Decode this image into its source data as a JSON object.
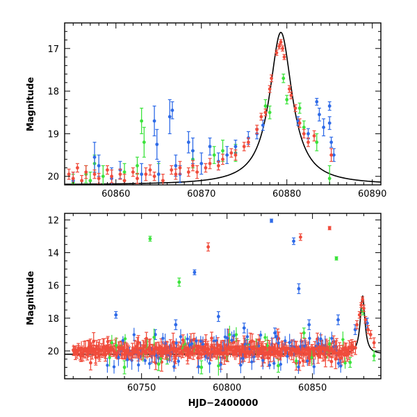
{
  "colors": {
    "red": "#f04c3c",
    "green": "#3ce33c",
    "blue": "#2f6be8"
  },
  "chart_data": [
    {
      "type": "scatter",
      "panel": "top",
      "title": "",
      "xlabel": "",
      "ylabel": "Magnitude",
      "xlim": [
        60854,
        60891
      ],
      "ylim": [
        20.2,
        16.4
      ],
      "y_inverted": true,
      "xticks": [
        60860,
        60870,
        60880,
        60890
      ],
      "yticks": [
        17,
        18,
        19,
        20
      ],
      "model_curve": {
        "peak_x": 60879.3,
        "peak_y": 16.62,
        "base_y": 20.2
      },
      "series": [
        {
          "color": "red",
          "points": [
            [
              60854.5,
              19.95,
              0.12
            ],
            [
              60855,
              20.05,
              0.15
            ],
            [
              60855.5,
              19.8,
              0.1
            ],
            [
              60856,
              20.1,
              0.12
            ],
            [
              60856.5,
              19.9,
              0.15
            ],
            [
              60857.5,
              19.95,
              0.1
            ],
            [
              60858,
              20.05,
              0.12
            ],
            [
              60859,
              19.85,
              0.1
            ],
            [
              60859.5,
              20.0,
              0.15
            ],
            [
              60860.5,
              19.95,
              0.12
            ],
            [
              60861,
              20.1,
              0.15
            ],
            [
              60862,
              19.9,
              0.1
            ],
            [
              60862.5,
              20.05,
              0.12
            ],
            [
              60863.5,
              19.95,
              0.15
            ],
            [
              60864,
              19.85,
              0.12
            ],
            [
              60864.5,
              20.0,
              0.1
            ],
            [
              60865.5,
              20.1,
              0.15
            ],
            [
              60866.5,
              19.85,
              0.1
            ],
            [
              60867,
              19.95,
              0.12
            ],
            [
              60867.5,
              19.8,
              0.15
            ],
            [
              60868.5,
              19.9,
              0.1
            ],
            [
              60869,
              19.75,
              0.12
            ],
            [
              60869.5,
              19.9,
              0.15
            ],
            [
              60870.5,
              19.8,
              0.1
            ],
            [
              60871,
              19.7,
              0.12
            ],
            [
              60872,
              19.75,
              0.1
            ],
            [
              60872.5,
              19.6,
              0.12
            ],
            [
              60873.5,
              19.45,
              0.1
            ],
            [
              60874,
              19.5,
              0.12
            ],
            [
              60875,
              19.3,
              0.1
            ],
            [
              60875.5,
              19.2,
              0.1
            ],
            [
              60876.5,
              18.9,
              0.1
            ],
            [
              60877,
              18.6,
              0.08
            ],
            [
              60877.5,
              18.5,
              0.08
            ],
            [
              60878,
              17.95,
              0.08
            ],
            [
              60878.2,
              17.7,
              0.08
            ],
            [
              60878.8,
              17.1,
              0.06
            ],
            [
              60879.1,
              16.95,
              0.06
            ],
            [
              60879.3,
              16.85,
              0.06
            ],
            [
              60879.5,
              17.0,
              0.06
            ],
            [
              60879.7,
              17.2,
              0.06
            ],
            [
              60880.3,
              17.95,
              0.08
            ],
            [
              60880.5,
              18.1,
              0.08
            ],
            [
              60881,
              18.4,
              0.08
            ],
            [
              60881.5,
              18.75,
              0.1
            ],
            [
              60882,
              19.0,
              0.1
            ],
            [
              60882.5,
              19.2,
              0.1
            ],
            [
              60883.2,
              19.05,
              0.12
            ],
            [
              60885.2,
              19.5,
              0.15
            ]
          ]
        },
        {
          "color": "green",
          "points": [
            [
              60855,
              20.15,
              0.2
            ],
            [
              60856.5,
              19.95,
              0.2
            ],
            [
              60857,
              20.1,
              0.2
            ],
            [
              60857.5,
              19.7,
              0.2
            ],
            [
              60858.5,
              20.0,
              0.25
            ],
            [
              60861,
              19.9,
              0.2
            ],
            [
              60862.5,
              19.75,
              0.2
            ],
            [
              60863.3,
              19.2,
              0.35
            ],
            [
              60863,
              18.7,
              0.3
            ],
            [
              60865,
              19.95,
              0.25
            ],
            [
              60869,
              19.6,
              0.2
            ],
            [
              60871.5,
              19.5,
              0.2
            ],
            [
              60872.5,
              19.4,
              0.25
            ],
            [
              60874,
              19.45,
              0.2
            ],
            [
              60877.5,
              18.35,
              0.15
            ],
            [
              60878,
              18.5,
              0.15
            ],
            [
              60879.6,
              17.7,
              0.1
            ],
            [
              60880,
              18.2,
              0.1
            ],
            [
              60881.5,
              18.4,
              0.12
            ],
            [
              60882,
              18.85,
              0.15
            ],
            [
              60883.5,
              19.2,
              0.2
            ],
            [
              60885,
              20.05,
              0.3
            ]
          ]
        },
        {
          "color": "blue",
          "points": [
            [
              60855,
              20.1,
              0.2
            ],
            [
              60857.5,
              19.55,
              0.35
            ],
            [
              60858,
              19.75,
              0.25
            ],
            [
              60859.5,
              20.05,
              0.25
            ],
            [
              60860.5,
              19.85,
              0.2
            ],
            [
              60863,
              19.95,
              0.25
            ],
            [
              60864.5,
              18.7,
              0.35
            ],
            [
              60864.8,
              19.25,
              0.35
            ],
            [
              60865,
              19.95,
              0.3
            ],
            [
              60866.3,
              18.6,
              0.4
            ],
            [
              60866.6,
              18.45,
              0.2
            ],
            [
              60867,
              19.75,
              0.25
            ],
            [
              60867.5,
              19.95,
              0.2
            ],
            [
              60868.5,
              19.2,
              0.25
            ],
            [
              60869,
              19.4,
              0.3
            ],
            [
              60870,
              19.7,
              0.25
            ],
            [
              60871,
              19.3,
              0.2
            ],
            [
              60872,
              19.65,
              0.2
            ],
            [
              60873,
              19.5,
              0.2
            ],
            [
              60874,
              19.3,
              0.15
            ],
            [
              60875.5,
              19.1,
              0.15
            ],
            [
              60876.5,
              19.0,
              0.12
            ],
            [
              60877.2,
              18.8,
              0.12
            ],
            [
              60881.3,
              18.7,
              0.1
            ],
            [
              60882.5,
              19.0,
              0.12
            ],
            [
              60883.5,
              18.25,
              0.08
            ],
            [
              60883.8,
              18.55,
              0.15
            ],
            [
              60884.3,
              18.85,
              0.2
            ],
            [
              60885,
              18.35,
              0.1
            ],
            [
              60885,
              18.75,
              0.15
            ],
            [
              60885.2,
              19.2,
              0.12
            ],
            [
              60885.5,
              19.5,
              0.15
            ]
          ]
        }
      ]
    },
    {
      "type": "scatter",
      "panel": "bottom",
      "title": "",
      "xlabel": "HJD−2400000",
      "ylabel": "Magnitude",
      "xlim": [
        60705,
        60890
      ],
      "ylim": [
        21.7,
        11.6
      ],
      "y_inverted": true,
      "xticks": [
        60750,
        60800,
        60850
      ],
      "yticks": [
        12,
        14,
        16,
        18,
        20
      ],
      "model_curve": {
        "peak_x": 60879.3,
        "peak_y": 16.62,
        "base_y": 20.2
      },
      "series": [
        {
          "color": "red",
          "band": {
            "x_start": 60710,
            "x_end": 60875,
            "y_center": 20.0
          },
          "points": [
            [
              60860,
              12.5,
              0.1
            ],
            [
              60843,
              13.05,
              0.2
            ],
            [
              60789,
              13.65,
              0.25
            ],
            [
              60876,
              18.4,
              0.25
            ],
            [
              60877.5,
              17.8,
              0.2
            ],
            [
              60878.5,
              17.2,
              0.15
            ],
            [
              60879.3,
              16.85,
              0.15
            ],
            [
              60880,
              17.4,
              0.2
            ],
            [
              60881,
              18.1,
              0.2
            ],
            [
              60882.5,
              18.7,
              0.25
            ],
            [
              60884,
              19.0,
              0.25
            ],
            [
              60886,
              19.5,
              0.3
            ]
          ]
        },
        {
          "color": "green",
          "points": [
            [
              60755,
              13.15,
              0.15
            ],
            [
              60772,
              15.8,
              0.25
            ],
            [
              60864,
              14.35,
              0.1
            ],
            [
              60738,
              19.7,
              0.3
            ],
            [
              60760,
              20.8,
              0.4
            ],
            [
              60740,
              21.0,
              0.4
            ],
            [
              60765,
              20.5,
              0.3
            ],
            [
              60785,
              21.0,
              0.4
            ],
            [
              60800,
              20.3,
              0.3
            ],
            [
              60812,
              19.6,
              0.3
            ],
            [
              60830,
              20.9,
              0.4
            ],
            [
              60845,
              18.9,
              0.3
            ],
            [
              60860,
              19.8,
              0.3
            ],
            [
              60872,
              20.7,
              0.3
            ],
            [
              60879.5,
              17.6,
              0.2
            ],
            [
              60886,
              20.3,
              0.3
            ]
          ]
        },
        {
          "color": "blue",
          "points": [
            [
              60826,
              12.05,
              0.1
            ],
            [
              60839,
              13.3,
              0.2
            ],
            [
              60842,
              16.2,
              0.3
            ],
            [
              60781,
              15.2,
              0.15
            ],
            [
              60735,
              17.8,
              0.2
            ],
            [
              60770,
              18.4,
              0.3
            ],
            [
              60795,
              17.9,
              0.3
            ],
            [
              60810,
              18.6,
              0.3
            ],
            [
              60828,
              18.9,
              0.3
            ],
            [
              60848,
              18.4,
              0.3
            ],
            [
              60865,
              18.1,
              0.3
            ],
            [
              60875,
              18.7,
              0.3
            ],
            [
              60882,
              18.3,
              0.3
            ],
            [
              60758,
              19.0,
              0.3
            ]
          ]
        }
      ]
    }
  ]
}
